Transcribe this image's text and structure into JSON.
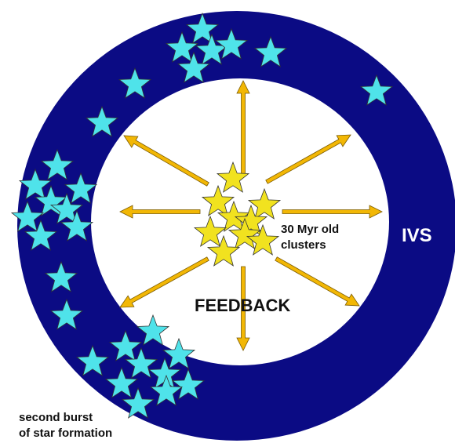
{
  "labels": {
    "clusters": [
      "30 Myr old",
      "clusters"
    ],
    "ring": "IVS",
    "center": "FEEDBACK",
    "burst": [
      "second burst",
      "of star formation"
    ]
  }
}
